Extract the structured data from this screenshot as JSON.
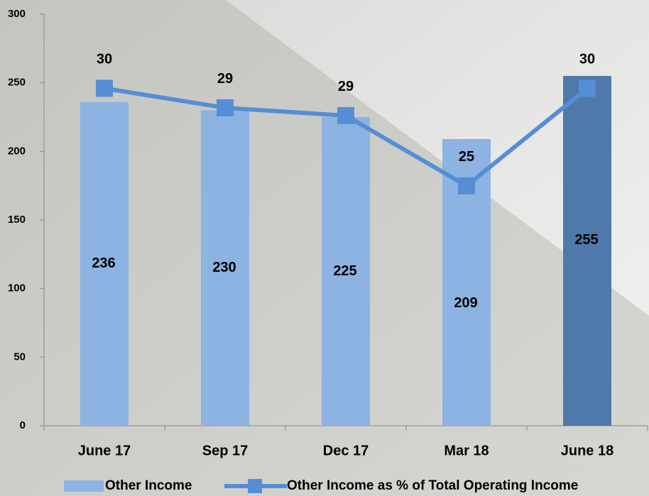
{
  "chart_data": {
    "type": "bar+line",
    "categories": [
      "June 17",
      "Sep 17",
      "Dec 17",
      "Mar 18",
      "June 18"
    ],
    "series": [
      {
        "name": "Other Income",
        "type": "bar",
        "color": "#8db3e2",
        "colors": [
          "#8db3e2",
          "#8db3e2",
          "#8db3e2",
          "#8db3e2",
          "#4f79aa"
        ],
        "values": [
          236,
          230,
          225,
          209,
          255
        ]
      },
      {
        "name": "Other Income as % of Total Operating Income",
        "type": "line",
        "axis": "y2",
        "color": "#558ed5",
        "values": [
          30,
          29,
          28.6,
          25,
          30
        ],
        "value_labels": [
          "30",
          "29",
          "29",
          "25",
          "30"
        ]
      }
    ],
    "ylim": [
      0,
      300
    ],
    "yticks": [
      0,
      50,
      100,
      150,
      200,
      250,
      300
    ],
    "y2lim": [
      12.7,
      33.8
    ],
    "legend": "bottom"
  }
}
